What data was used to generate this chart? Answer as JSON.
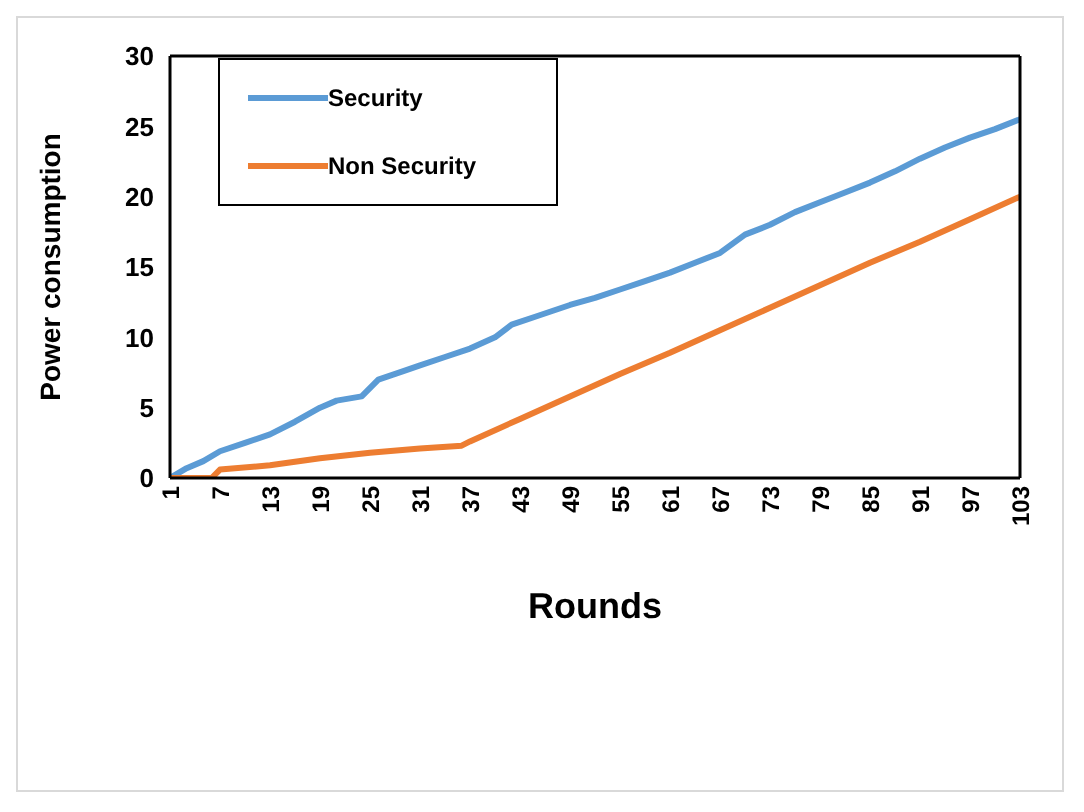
{
  "chart_data": {
    "type": "line",
    "xlabel": "Rounds",
    "ylabel": "Power consumption",
    "xlim": [
      1,
      103
    ],
    "xticks": [
      1,
      7,
      13,
      19,
      25,
      31,
      37,
      43,
      49,
      55,
      61,
      67,
      73,
      79,
      85,
      91,
      97,
      103
    ],
    "ylim": [
      0,
      30
    ],
    "yticks": [
      0,
      5,
      10,
      15,
      20,
      25,
      30
    ],
    "legend": "top left",
    "line_style": "solid",
    "marker": "none",
    "series": [
      {
        "name": "Security",
        "color": "#5b9bd5",
        "x": [
          1,
          3,
          5,
          7,
          10,
          13,
          16,
          19,
          21,
          24,
          26,
          29,
          31,
          34,
          37,
          40,
          42,
          45,
          49,
          52,
          55,
          58,
          61,
          64,
          67,
          70,
          73,
          76,
          79,
          82,
          85,
          88,
          91,
          94,
          97,
          100,
          103
        ],
        "values": [
          0,
          0.7,
          1.2,
          1.9,
          2.5,
          3.1,
          4.0,
          5.0,
          5.5,
          5.8,
          7.0,
          7.6,
          8.0,
          8.6,
          9.2,
          10.0,
          10.9,
          11.5,
          12.3,
          12.8,
          13.4,
          14.0,
          14.6,
          15.3,
          16.0,
          17.3,
          18.0,
          18.9,
          19.6,
          20.3,
          21.0,
          21.8,
          22.7,
          23.5,
          24.2,
          24.8,
          25.5
        ]
      },
      {
        "name": "Non Security",
        "color": "#ed7d31",
        "x": [
          1,
          6,
          7,
          13,
          19,
          25,
          31,
          36,
          37,
          43,
          49,
          55,
          61,
          67,
          73,
          79,
          85,
          91,
          97,
          103
        ],
        "values": [
          0,
          0,
          0.6,
          0.9,
          1.4,
          1.8,
          2.1,
          2.3,
          2.6,
          4.2,
          5.8,
          7.4,
          8.9,
          10.5,
          12.1,
          13.7,
          15.3,
          16.8,
          18.4,
          20.0
        ]
      }
    ]
  }
}
